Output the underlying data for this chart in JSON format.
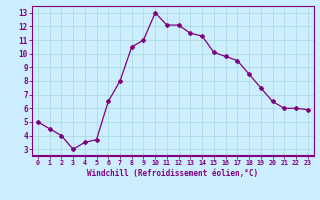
{
  "x": [
    0,
    1,
    2,
    3,
    4,
    5,
    6,
    7,
    8,
    9,
    10,
    11,
    12,
    13,
    14,
    15,
    16,
    17,
    18,
    19,
    20,
    21,
    22,
    23
  ],
  "y": [
    5.0,
    4.5,
    4.0,
    3.0,
    3.5,
    3.7,
    6.5,
    8.0,
    10.5,
    11.0,
    13.0,
    12.1,
    12.1,
    11.5,
    11.3,
    10.1,
    9.8,
    9.5,
    8.5,
    7.5,
    6.5,
    6.0,
    6.0,
    5.9
  ],
  "line_color": "#800080",
  "marker": "D",
  "marker_size": 2.0,
  "bg_color": "#cceeff",
  "grid_color": "#aadddd",
  "xlabel": "Windchill (Refroidissement éolien,°C)",
  "xlim": [
    -0.5,
    23.5
  ],
  "ylim": [
    2.5,
    13.5
  ],
  "yticks": [
    3,
    4,
    5,
    6,
    7,
    8,
    9,
    10,
    11,
    12,
    13
  ],
  "xticks": [
    0,
    1,
    2,
    3,
    4,
    5,
    6,
    7,
    8,
    9,
    10,
    11,
    12,
    13,
    14,
    15,
    16,
    17,
    18,
    19,
    20,
    21,
    22,
    23
  ],
  "tick_color": "#800080",
  "label_color": "#800080",
  "axis_color": "#800080",
  "line_width": 0.9
}
